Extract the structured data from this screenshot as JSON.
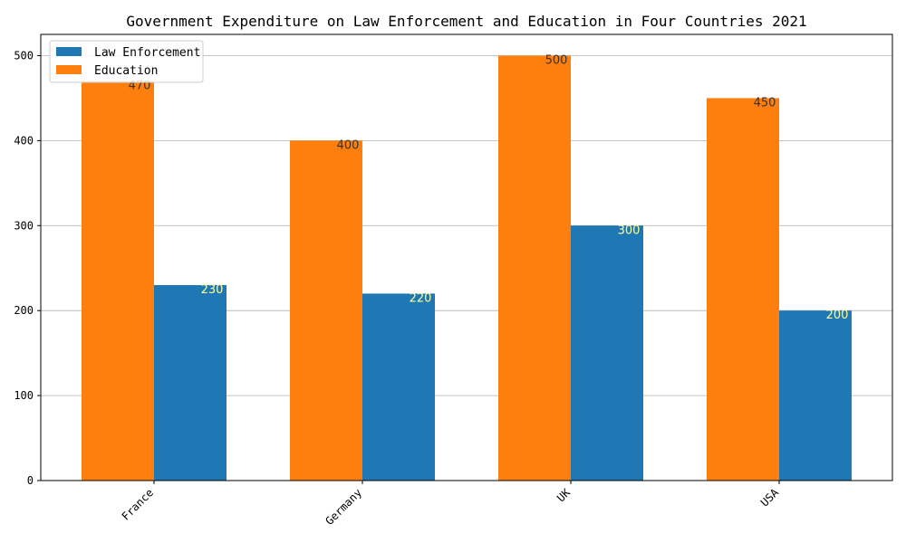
{
  "chart_data": {
    "type": "bar",
    "title": "Government Expenditure on Law Enforcement and Education in Four Countries 2021",
    "xlabel": "",
    "ylabel": "",
    "categories": [
      "France",
      "Germany",
      "UK",
      "USA"
    ],
    "series": [
      {
        "name": "Education",
        "values": [
          470,
          400,
          500,
          450
        ],
        "color": "#ff7f0e",
        "label_color": "#333333"
      },
      {
        "name": "Law Enforcement",
        "values": [
          230,
          220,
          300,
          200
        ],
        "color": "#1f77b4",
        "label_color": "#ffff99"
      }
    ],
    "ylim": [
      0,
      525
    ],
    "yticks": [
      0,
      100,
      200,
      300,
      400,
      500
    ],
    "grid": "y",
    "legend": {
      "placement": "top-left",
      "entries": [
        {
          "label": "Law Enforcement",
          "color": "#1f77b4"
        },
        {
          "label": "Education",
          "color": "#ff7f0e"
        }
      ]
    }
  }
}
